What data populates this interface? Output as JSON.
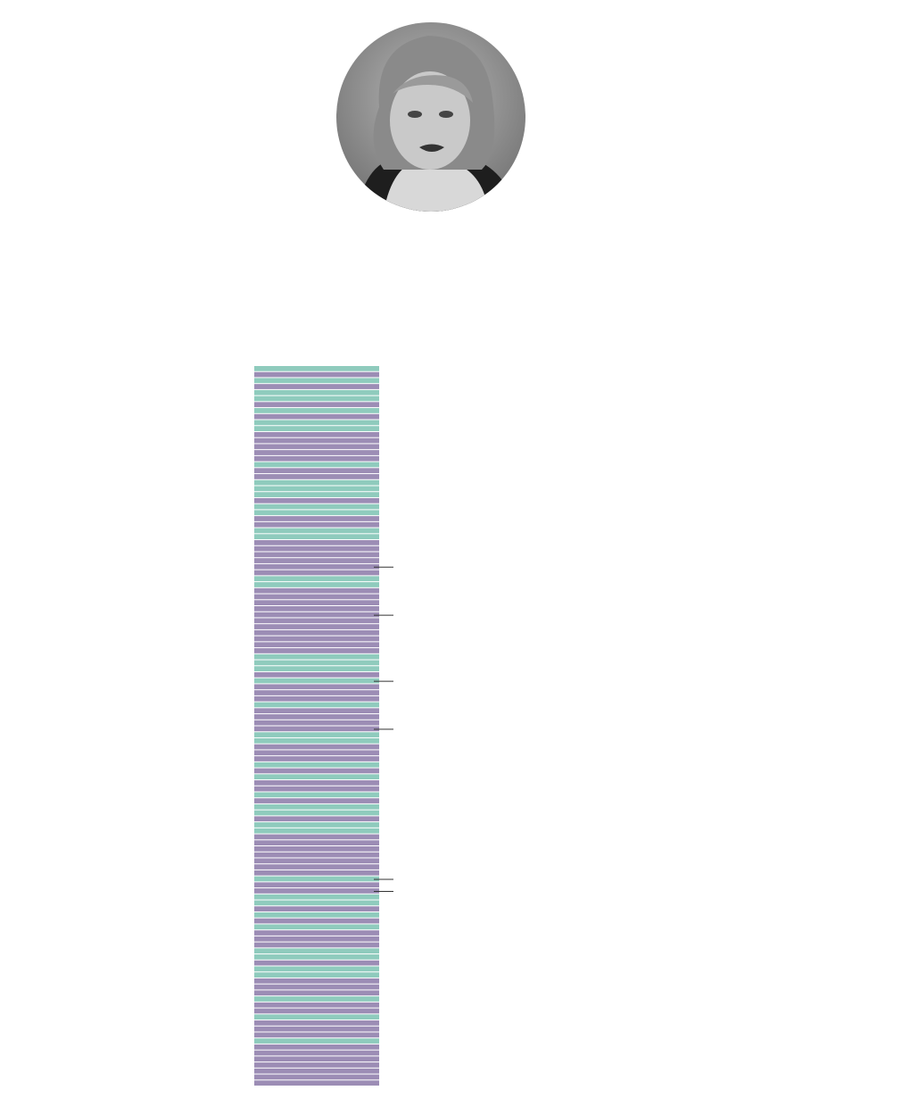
{
  "palette": {
    "teal": "#8fcbbd",
    "purple": "#9c8db5"
  },
  "stripes": [
    "teal",
    "purple",
    "teal",
    "purple",
    "teal",
    "teal",
    "purple",
    "teal",
    "purple",
    "teal",
    "teal",
    "purple",
    "purple",
    "purple",
    "purple",
    "purple",
    "teal",
    "purple",
    "purple",
    "teal",
    "teal",
    "teal",
    "purple",
    "teal",
    "teal",
    "purple",
    "purple",
    "teal",
    "teal",
    "purple",
    "purple",
    "purple",
    "purple",
    "purple",
    "purple",
    "teal",
    "teal",
    "purple",
    "purple",
    "purple",
    "purple",
    "purple",
    "purple",
    "purple",
    "purple",
    "purple",
    "purple",
    "purple",
    "teal",
    "teal",
    "teal",
    "purple",
    "teal",
    "purple",
    "purple",
    "purple",
    "teal",
    "purple",
    "purple",
    "purple",
    "purple",
    "teal",
    "teal",
    "purple",
    "purple",
    "purple",
    "teal",
    "purple",
    "teal",
    "purple",
    "purple",
    "teal",
    "purple",
    "teal",
    "teal",
    "purple",
    "teal",
    "teal",
    "purple",
    "purple",
    "purple",
    "purple",
    "purple",
    "purple",
    "purple",
    "teal",
    "purple",
    "purple",
    "teal",
    "teal",
    "purple",
    "teal",
    "purple",
    "teal",
    "purple",
    "purple",
    "purple",
    "teal",
    "teal",
    "purple",
    "teal",
    "teal",
    "purple",
    "purple",
    "purple",
    "teal",
    "purple",
    "purple",
    "teal",
    "purple",
    "purple",
    "purple",
    "teal",
    "purple",
    "purple",
    "purple",
    "purple",
    "purple",
    "purple",
    "purple"
  ],
  "marked_rows": [
    33,
    41,
    52,
    60,
    85,
    87
  ]
}
